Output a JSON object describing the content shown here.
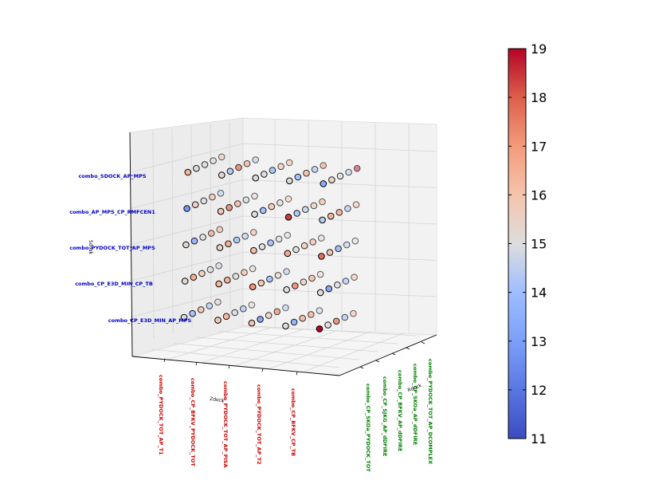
{
  "chart_data": {
    "type": "scatter",
    "projection": "3d",
    "title": "",
    "axes": {
      "x": {
        "label": "Zdock",
        "ticks": [
          "combo_PYDOCK_TOT_AP_T1",
          "combo_CP_BFKV_PYDOCK_TOT",
          "combo_PYDOCK_TOT_AP_PISA",
          "combo_PYDOCK_TOT_AP_T2",
          "combo_CP_BFKV_CP_TB"
        ],
        "tick_color": "#cc0000"
      },
      "y": {
        "label": "Rdock",
        "ticks": [
          "combo_CP_SKOa_PYDOCK_TOT",
          "combo_CP_SJKG_AP_dDFIRE",
          "combo_CP_BFKV_AP_dDFIRE",
          "combo_CP_SKOa_AP_dDFIRE",
          "combo_PYDOCK_TOT_AP_DCOMPLEX"
        ],
        "tick_color": "#008000"
      },
      "z": {
        "label": "Sdock",
        "ticks": [
          "combo_CP_E3D_MIN_AP_MPS",
          "combo_CP_E3D_MIN_CP_TB",
          "combo_PYDOCK_TOT_AP_MPS",
          "combo_AP_MPS_CP_RMFCEN1",
          "combo_SDOCK_AP_MPS"
        ],
        "tick_color": "#0000cc"
      }
    },
    "colorbar": {
      "min": 11,
      "max": 19,
      "ticks": [
        11,
        12,
        13,
        14,
        15,
        16,
        17,
        18,
        19
      ],
      "colormap": "coolwarm",
      "low_color": "#3b4cc0",
      "mid_color": "#dddddd",
      "high_color": "#b40426"
    },
    "grid": true,
    "note_marker": "circle",
    "series": [
      {
        "name": "",
        "points": [
          [
            0,
            0,
            0,
            15.0
          ],
          [
            0,
            1,
            0,
            14.0
          ],
          [
            0,
            2,
            0,
            16.2
          ],
          [
            0,
            3,
            0,
            14.2
          ],
          [
            0,
            4,
            0,
            15.4
          ],
          [
            1,
            0,
            0,
            15.8
          ],
          [
            1,
            1,
            0,
            16.5
          ],
          [
            1,
            2,
            0,
            14.9
          ],
          [
            1,
            3,
            0,
            14.1
          ],
          [
            1,
            4,
            0,
            15.1
          ],
          [
            2,
            0,
            0,
            16.0
          ],
          [
            2,
            1,
            0,
            12.9
          ],
          [
            2,
            2,
            0,
            15.6
          ],
          [
            2,
            3,
            0,
            17.5
          ],
          [
            2,
            4,
            0,
            14.3
          ],
          [
            3,
            0,
            0,
            15.0
          ],
          [
            3,
            1,
            0,
            13.4
          ],
          [
            3,
            2,
            0,
            16.5
          ],
          [
            3,
            3,
            0,
            16.8
          ],
          [
            3,
            4,
            0,
            14.6
          ],
          [
            4,
            0,
            0,
            19.0
          ],
          [
            4,
            1,
            0,
            15.1
          ],
          [
            4,
            2,
            0,
            17.6
          ],
          [
            4,
            3,
            0,
            14.2
          ],
          [
            4,
            4,
            0,
            16.3
          ],
          [
            0,
            0,
            1,
            15.3
          ],
          [
            0,
            1,
            1,
            16.8
          ],
          [
            0,
            2,
            1,
            15.9
          ],
          [
            0,
            3,
            1,
            15.1
          ],
          [
            0,
            4,
            1,
            14.6
          ],
          [
            1,
            0,
            1,
            16.3
          ],
          [
            1,
            1,
            1,
            16.6
          ],
          [
            1,
            2,
            1,
            15.0
          ],
          [
            1,
            3,
            1,
            16.2
          ],
          [
            1,
            4,
            1,
            15.4
          ],
          [
            2,
            0,
            1,
            17.1
          ],
          [
            2,
            1,
            1,
            16.0
          ],
          [
            2,
            2,
            1,
            13.6
          ],
          [
            2,
            3,
            1,
            15.5
          ],
          [
            2,
            4,
            1,
            14.3
          ],
          [
            3,
            0,
            1,
            15.0
          ],
          [
            3,
            1,
            1,
            17.3
          ],
          [
            3,
            2,
            1,
            15.7
          ],
          [
            3,
            3,
            1,
            16.6
          ],
          [
            3,
            4,
            1,
            15.2
          ],
          [
            4,
            0,
            1,
            15.0
          ],
          [
            4,
            1,
            1,
            12.9
          ],
          [
            4,
            2,
            1,
            15.0
          ],
          [
            4,
            3,
            1,
            14.1
          ],
          [
            4,
            4,
            1,
            16.2
          ],
          [
            0,
            0,
            2,
            15.2
          ],
          [
            0,
            1,
            2,
            13.5
          ],
          [
            0,
            2,
            2,
            15.0
          ],
          [
            0,
            3,
            2,
            17.0
          ],
          [
            0,
            4,
            2,
            16.6
          ],
          [
            1,
            0,
            2,
            15.3
          ],
          [
            1,
            1,
            2,
            16.7
          ],
          [
            1,
            2,
            2,
            14.0
          ],
          [
            1,
            3,
            2,
            14.6
          ],
          [
            1,
            4,
            2,
            16.5
          ],
          [
            2,
            0,
            2,
            16.1
          ],
          [
            2,
            1,
            2,
            15.0
          ],
          [
            2,
            2,
            2,
            13.6
          ],
          [
            2,
            3,
            2,
            14.9
          ],
          [
            2,
            4,
            2,
            15.2
          ],
          [
            3,
            0,
            2,
            16.6
          ],
          [
            3,
            1,
            2,
            15.0
          ],
          [
            3,
            2,
            2,
            15.8
          ],
          [
            3,
            3,
            2,
            16.2
          ],
          [
            3,
            4,
            2,
            15.4
          ],
          [
            4,
            0,
            2,
            17.7
          ],
          [
            4,
            1,
            2,
            16.2
          ],
          [
            4,
            2,
            2,
            13.4
          ],
          [
            4,
            3,
            2,
            14.6
          ],
          [
            4,
            4,
            2,
            15.1
          ],
          [
            0,
            0,
            3,
            12.8
          ],
          [
            0,
            1,
            3,
            15.7
          ],
          [
            0,
            2,
            3,
            15.0
          ],
          [
            0,
            3,
            3,
            16.1
          ],
          [
            0,
            4,
            3,
            14.4
          ],
          [
            1,
            0,
            3,
            15.9
          ],
          [
            1,
            1,
            3,
            17.3
          ],
          [
            1,
            2,
            3,
            16.4
          ],
          [
            1,
            3,
            3,
            14.9
          ],
          [
            1,
            4,
            3,
            15.3
          ],
          [
            2,
            0,
            3,
            15.0
          ],
          [
            2,
            1,
            3,
            13.9
          ],
          [
            2,
            2,
            3,
            16.1
          ],
          [
            2,
            3,
            3,
            15.2
          ],
          [
            2,
            4,
            3,
            15.8
          ],
          [
            3,
            0,
            3,
            18.4
          ],
          [
            3,
            1,
            3,
            14.1
          ],
          [
            3,
            2,
            3,
            14.6
          ],
          [
            3,
            3,
            3,
            15.7
          ],
          [
            3,
            4,
            3,
            16.6
          ],
          [
            4,
            0,
            3,
            14.5
          ],
          [
            4,
            1,
            3,
            16.6
          ],
          [
            4,
            2,
            3,
            16.9
          ],
          [
            4,
            3,
            3,
            14.3
          ],
          [
            4,
            4,
            3,
            16.1
          ],
          [
            0,
            0,
            4,
            16.4
          ],
          [
            0,
            1,
            4,
            14.9
          ],
          [
            0,
            2,
            4,
            15.1
          ],
          [
            0,
            3,
            4,
            15.0
          ],
          [
            0,
            4,
            4,
            16.0
          ],
          [
            1,
            0,
            4,
            15.3
          ],
          [
            1,
            1,
            4,
            14.2
          ],
          [
            1,
            2,
            4,
            17.6
          ],
          [
            1,
            3,
            4,
            16.7
          ],
          [
            1,
            4,
            4,
            14.4
          ],
          [
            2,
            0,
            4,
            15.2
          ],
          [
            2,
            1,
            4,
            15.0
          ],
          [
            2,
            2,
            4,
            13.7
          ],
          [
            2,
            3,
            4,
            15.9
          ],
          [
            2,
            4,
            4,
            16.3
          ],
          [
            3,
            0,
            4,
            15.1
          ],
          [
            3,
            1,
            4,
            13.9
          ],
          [
            3,
            2,
            4,
            16.3
          ],
          [
            3,
            3,
            4,
            14.2
          ],
          [
            3,
            4,
            4,
            17.2
          ],
          [
            4,
            0,
            4,
            13.4
          ],
          [
            4,
            1,
            4,
            15.6
          ],
          [
            4,
            2,
            4,
            15.0
          ],
          [
            4,
            3,
            4,
            14.6
          ],
          [
            4,
            4,
            4,
            18.9
          ]
        ]
      }
    ]
  }
}
